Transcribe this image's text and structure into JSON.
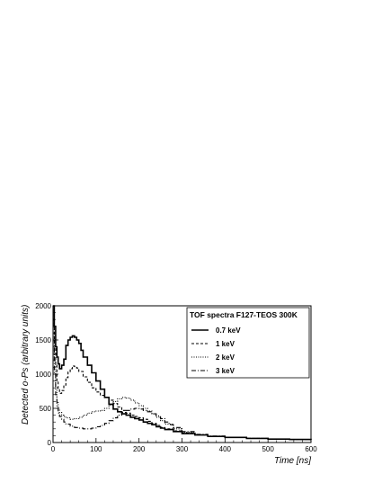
{
  "chart_data": {
    "type": "line",
    "title": "",
    "xlabel": "Time [ns]",
    "ylabel": "Detected o-Ps (arbitrary units)",
    "xlim": [
      0,
      600
    ],
    "ylim": [
      0,
      2000
    ],
    "x_ticks": [
      0,
      100,
      200,
      300,
      400,
      500,
      600
    ],
    "y_ticks": [
      0,
      500,
      1000,
      1500,
      2000
    ],
    "grid": false,
    "legend": {
      "title": "TOF spectra F127-TEOS 300K",
      "placement": "top-right"
    },
    "series": [
      {
        "name": "0.7 keV",
        "style": "solid",
        "x": [
          0,
          3,
          6,
          9,
          12,
          15,
          20,
          25,
          30,
          35,
          40,
          45,
          50,
          55,
          60,
          65,
          70,
          80,
          90,
          100,
          110,
          120,
          130,
          140,
          150,
          160,
          170,
          180,
          190,
          200,
          210,
          220,
          230,
          240,
          250,
          260,
          280,
          300,
          330,
          360,
          400,
          450,
          500,
          550,
          600
        ],
        "y": [
          2000,
          1700,
          1400,
          1250,
          1150,
          1080,
          1130,
          1220,
          1420,
          1500,
          1540,
          1560,
          1540,
          1500,
          1450,
          1350,
          1250,
          1130,
          1020,
          900,
          780,
          660,
          560,
          490,
          450,
          420,
          400,
          370,
          350,
          330,
          300,
          280,
          260,
          230,
          210,
          190,
          160,
          130,
          110,
          90,
          75,
          60,
          50,
          45,
          40
        ]
      },
      {
        "name": "1 keV",
        "style": "dashed",
        "x": [
          0,
          3,
          6,
          9,
          12,
          15,
          20,
          25,
          30,
          35,
          40,
          45,
          50,
          55,
          60,
          70,
          80,
          90,
          100,
          110,
          120,
          130,
          140,
          150,
          160,
          170,
          180,
          190,
          200,
          210,
          220,
          230,
          240,
          250,
          260,
          280,
          300,
          330,
          360,
          400,
          450,
          500,
          550,
          600
        ],
        "y": [
          2000,
          1500,
          1150,
          900,
          780,
          720,
          760,
          840,
          950,
          1030,
          1080,
          1120,
          1110,
          1090,
          1040,
          960,
          880,
          800,
          740,
          690,
          660,
          620,
          570,
          520,
          470,
          430,
          400,
          380,
          360,
          340,
          310,
          280,
          250,
          220,
          200,
          170,
          140,
          110,
          90,
          75,
          60,
          50,
          45,
          40
        ]
      },
      {
        "name": "2 keV",
        "style": "dotted",
        "x": [
          0,
          3,
          6,
          9,
          12,
          15,
          20,
          25,
          30,
          40,
          50,
          60,
          70,
          80,
          90,
          100,
          110,
          120,
          130,
          140,
          150,
          160,
          170,
          180,
          190,
          200,
          210,
          220,
          230,
          240,
          250,
          260,
          280,
          300,
          330,
          360,
          400,
          450,
          500,
          550,
          600
        ],
        "y": [
          1800,
          1200,
          800,
          600,
          500,
          440,
          400,
          380,
          360,
          340,
          350,
          370,
          400,
          430,
          450,
          460,
          470,
          500,
          550,
          600,
          640,
          660,
          650,
          620,
          580,
          540,
          500,
          460,
          420,
          370,
          320,
          270,
          200,
          150,
          110,
          90,
          75,
          60,
          50,
          45,
          40
        ]
      },
      {
        "name": "3 keV",
        "style": "dashdot",
        "x": [
          0,
          3,
          6,
          9,
          12,
          15,
          20,
          25,
          30,
          40,
          50,
          60,
          70,
          80,
          90,
          100,
          110,
          120,
          130,
          140,
          150,
          160,
          170,
          180,
          190,
          200,
          210,
          220,
          230,
          240,
          250,
          260,
          270,
          280,
          300,
          330,
          360,
          400,
          450,
          500,
          550,
          600
        ],
        "y": [
          1500,
          1000,
          700,
          500,
          430,
          380,
          340,
          300,
          270,
          240,
          220,
          210,
          200,
          200,
          210,
          230,
          250,
          280,
          320,
          360,
          400,
          440,
          470,
          490,
          500,
          490,
          470,
          450,
          420,
          390,
          350,
          300,
          260,
          220,
          160,
          120,
          95,
          75,
          60,
          50,
          45,
          40
        ]
      }
    ]
  }
}
